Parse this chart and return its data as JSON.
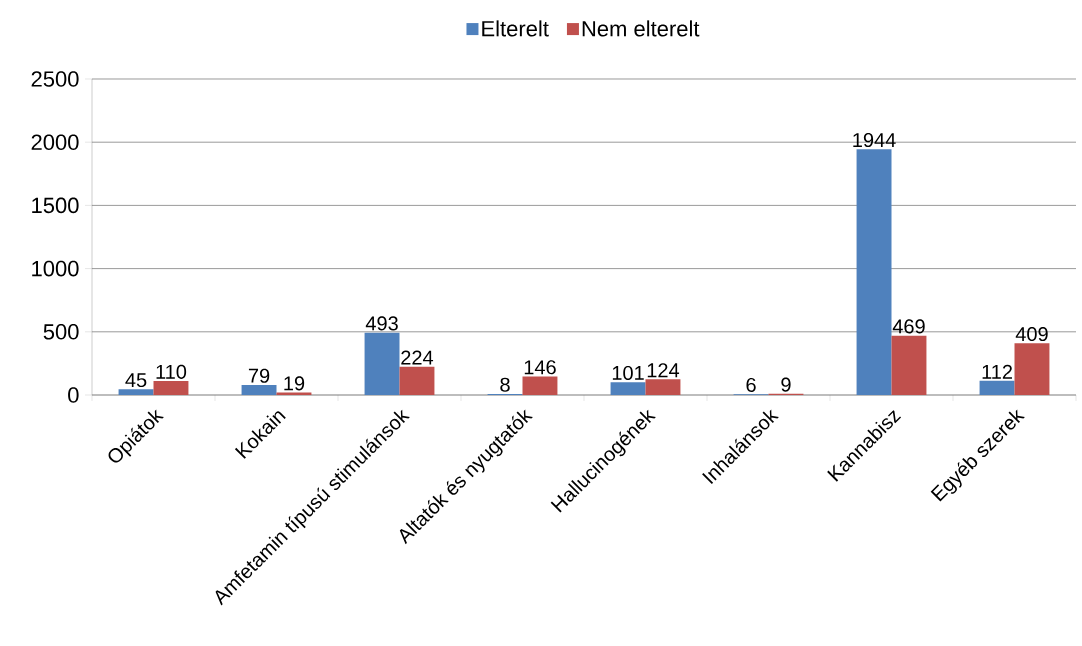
{
  "chart_data": {
    "type": "bar",
    "categories": [
      "Opiátok",
      "Kokain",
      "Amfetamin típusú stimulánsok",
      "Altatók és nyugtatók",
      "Hallucinogének",
      "Inhalánsok",
      "Kannabisz",
      "Egyéb szerek"
    ],
    "series": [
      {
        "name": "Elterelt",
        "color": "#4f81bd",
        "values": [
          45,
          79,
          493,
          8,
          101,
          6,
          1944,
          112
        ]
      },
      {
        "name": "Nem elterelt",
        "color": "#c0504d",
        "values": [
          110,
          19,
          224,
          146,
          124,
          9,
          469,
          409
        ]
      }
    ],
    "ylim": [
      0,
      2500
    ],
    "yticks": [
      0,
      500,
      1000,
      1500,
      2000,
      2500
    ],
    "grid": "y",
    "legend": "top",
    "data_labels": true
  }
}
